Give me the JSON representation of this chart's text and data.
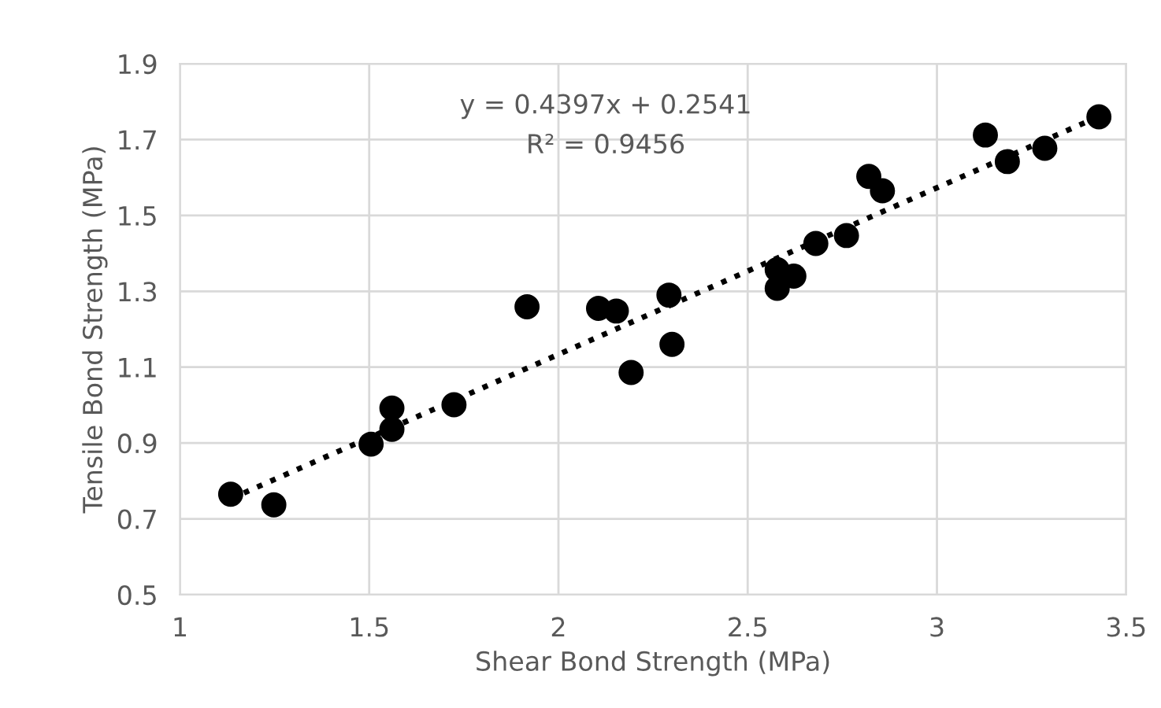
{
  "chart_data": {
    "type": "scatter",
    "xlabel": "Shear Bond Strength (MPa)",
    "ylabel": "Tensile Bond Strength (MPa)",
    "xlim": [
      1,
      3.5
    ],
    "xticks": [
      1,
      1.5,
      2,
      2.5,
      3,
      3.5
    ],
    "ylim": [
      0.5,
      1.9
    ],
    "yticks": [
      0.5,
      0.7,
      0.9,
      1.1,
      1.3,
      1.5,
      1.7,
      1.9
    ],
    "grid": true,
    "annotations": [
      "y = 0.4397x + 0.2541",
      "R² = 0.9456"
    ],
    "series": [
      {
        "color": "#000000",
        "marker": "circle",
        "x": [
          1.134,
          1.248,
          1.505,
          1.56,
          1.56,
          1.724,
          1.917,
          2.106,
          2.153,
          2.192,
          2.292,
          2.3,
          2.578,
          2.622,
          2.578,
          2.68,
          2.761,
          2.82,
          2.856,
          3.128,
          3.186,
          3.285,
          3.428
        ],
        "values": [
          0.765,
          0.737,
          0.897,
          0.992,
          0.936,
          1.001,
          1.259,
          1.255,
          1.248,
          1.086,
          1.29,
          1.16,
          1.357,
          1.34,
          1.308,
          1.426,
          1.447,
          1.603,
          1.565,
          1.712,
          1.642,
          1.677,
          1.76
        ]
      },
      {
        "type": "line",
        "color": "#000000",
        "line_style": "dotted",
        "marker": "none",
        "x": [
          1.134,
          3.428
        ],
        "values": [
          0.753,
          1.761
        ]
      }
    ]
  }
}
